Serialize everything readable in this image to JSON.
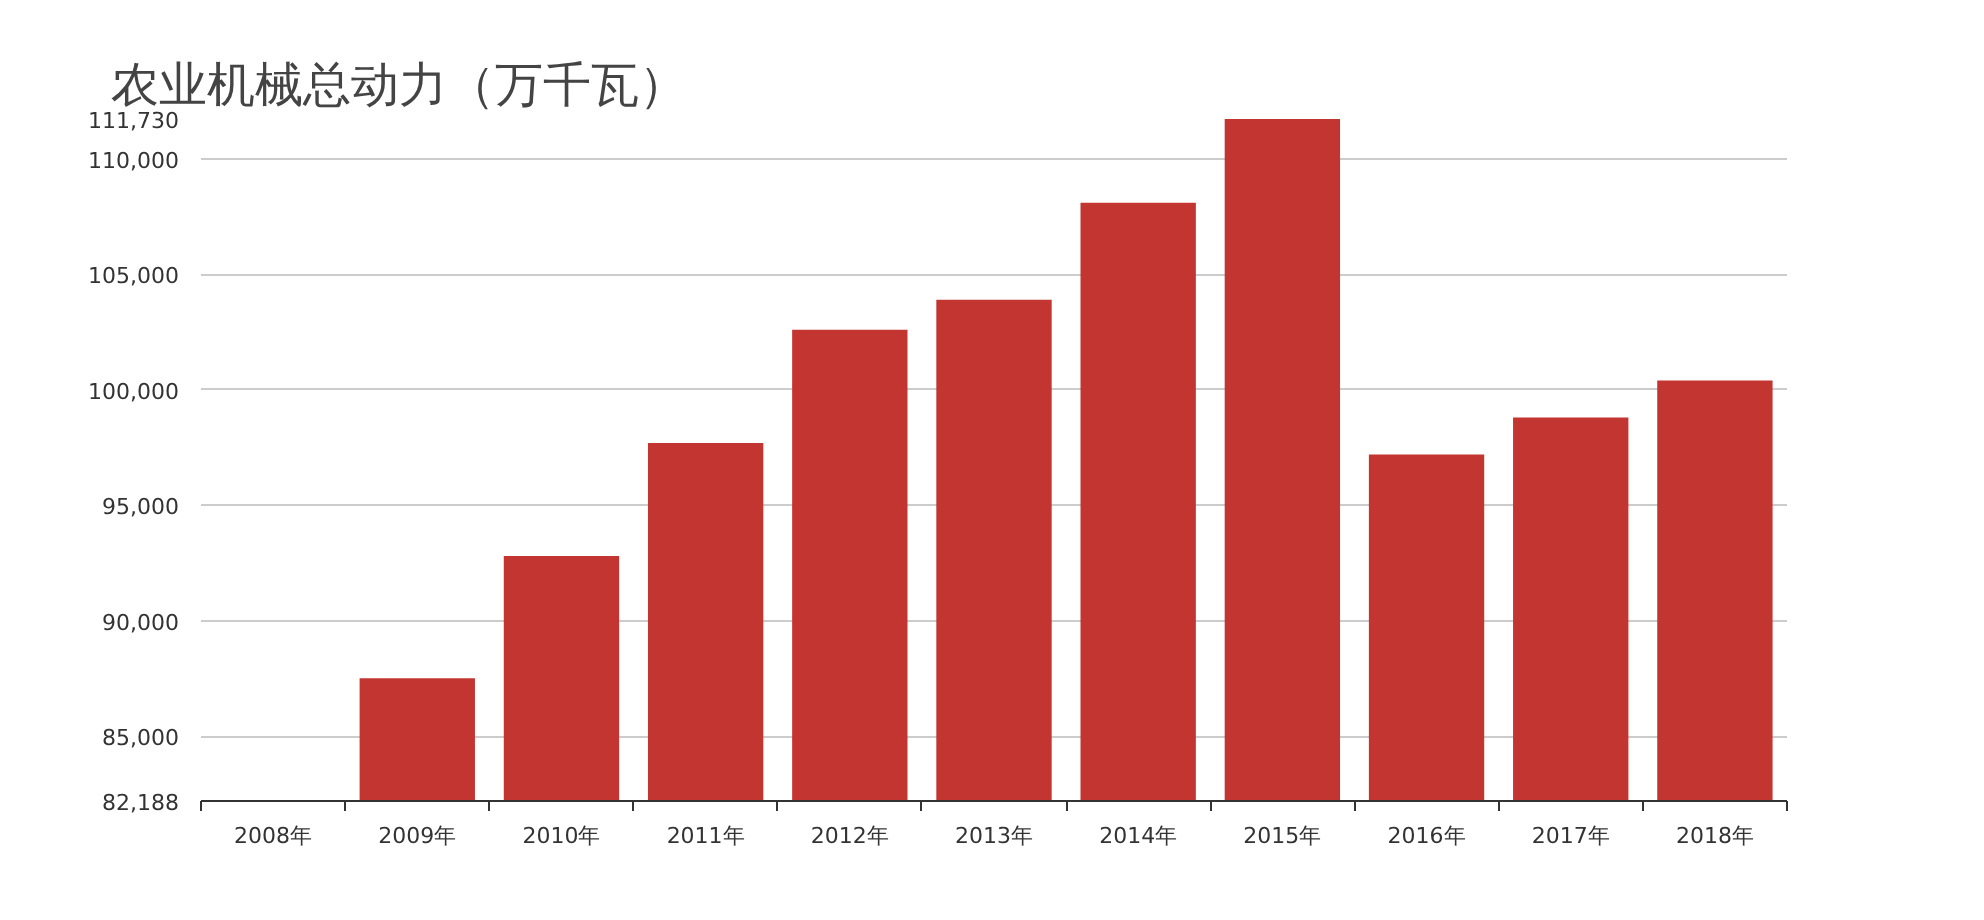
{
  "chart_data": {
    "type": "bar",
    "title": "农业机械总动力（万千瓦）",
    "categories": [
      "2008年",
      "2009年",
      "2010年",
      "2011年",
      "2012年",
      "2013年",
      "2014年",
      "2015年",
      "2016年",
      "2017年",
      "2018年"
    ],
    "values": [
      82188,
      87500,
      92800,
      97700,
      102600,
      103900,
      108100,
      111730,
      97200,
      98800,
      100400
    ],
    "color": "#c23531",
    "ylim": [
      82188,
      111730
    ],
    "yticks": [
      {
        "value": 82188,
        "label": "82,188"
      },
      {
        "value": 85000,
        "label": "85,000"
      },
      {
        "value": 90000,
        "label": "90,000"
      },
      {
        "value": 95000,
        "label": "95,000"
      },
      {
        "value": 100000,
        "label": "100,000"
      },
      {
        "value": 105000,
        "label": "105,000"
      },
      {
        "value": 110000,
        "label": "110,000"
      },
      {
        "value": 111730,
        "label": "111,730"
      }
    ],
    "grid": "y"
  }
}
